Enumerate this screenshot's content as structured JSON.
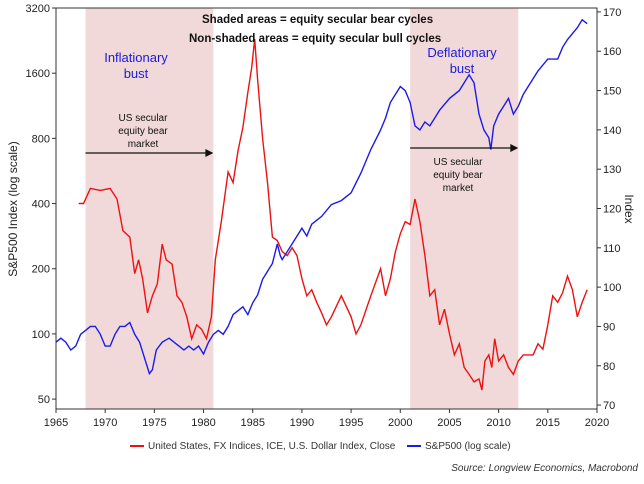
{
  "chart_data": {
    "type": "line",
    "title_lines": [
      "Shaded areas = equity secular bear cycles",
      "Non-shaded areas = equity secular bull cycles"
    ],
    "xlabel": "",
    "ylabel_left": "S&P500 Index (log scale)",
    "ylabel_right": "Index",
    "x_range": [
      1965,
      2020
    ],
    "x_ticks": [
      1965,
      1970,
      1975,
      1980,
      1985,
      1990,
      1995,
      2000,
      2005,
      2010,
      2015,
      2020
    ],
    "left_axis": {
      "scale": "log",
      "range": [
        45,
        3200
      ],
      "ticks": [
        50,
        100,
        200,
        400,
        800,
        1600,
        3200
      ]
    },
    "right_axis": {
      "scale": "linear",
      "range": [
        69,
        171
      ],
      "ticks": [
        70,
        80,
        90,
        100,
        110,
        120,
        130,
        140,
        150,
        160,
        170
      ]
    },
    "shaded_regions": [
      {
        "start": 1968,
        "end": 1981,
        "label_lines": [
          "Inflationary",
          "bust"
        ]
      },
      {
        "start": 2001,
        "end": 2012,
        "label_lines": [
          "Deflationary",
          "bust"
        ]
      }
    ],
    "annotations": [
      {
        "lines": [
          "US secular",
          "equity bear",
          "market"
        ],
        "arrow_from": 1968,
        "arrow_to": 1981
      },
      {
        "lines": [
          "US secular",
          "equity bear",
          "market"
        ],
        "arrow_from": 2001,
        "arrow_to": 2012
      }
    ],
    "series": [
      {
        "name": "United States, FX Indices, ICE, U.S. Dollar Index, Close",
        "color": "#ee1111",
        "axis": "left",
        "x": [
          1967.3,
          1967.8,
          1968.5,
          1969.5,
          1970.5,
          1971.2,
          1971.8,
          1972.5,
          1973.0,
          1973.4,
          1973.8,
          1974.3,
          1974.8,
          1975.3,
          1975.8,
          1976.2,
          1976.8,
          1977.3,
          1977.8,
          1978.3,
          1978.8,
          1979.3,
          1979.8,
          1980.3,
          1980.8,
          1981.2,
          1981.8,
          1982.5,
          1983.0,
          1983.5,
          1984.0,
          1984.5,
          1984.9,
          1985.2,
          1985.5,
          1986.0,
          1986.5,
          1987.0,
          1987.5,
          1988.0,
          1988.5,
          1989.0,
          1989.5,
          1990.0,
          1990.5,
          1991.0,
          1991.5,
          1992.0,
          1992.5,
          1993.0,
          1994.0,
          1995.0,
          1995.5,
          1996.0,
          1997.0,
          1998.0,
          1998.5,
          1999.0,
          1999.5,
          2000.0,
          2000.5,
          2001.0,
          2001.5,
          2002.0,
          2002.5,
          2003.0,
          2003.5,
          2004.0,
          2004.5,
          2005.0,
          2005.5,
          2006.0,
          2006.5,
          2007.0,
          2007.5,
          2008.0,
          2008.3,
          2008.6,
          2009.0,
          2009.3,
          2009.6,
          2010.0,
          2010.5,
          2011.0,
          2011.5,
          2012.0,
          2012.5,
          2013.0,
          2013.5,
          2014.0,
          2014.5,
          2015.0,
          2015.5,
          2016.0,
          2016.5,
          2017.0,
          2017.5,
          2018.0,
          2018.5,
          2019.0
        ],
        "values": [
          400,
          400,
          470,
          460,
          470,
          420,
          300,
          280,
          190,
          220,
          180,
          125,
          150,
          170,
          260,
          220,
          210,
          150,
          140,
          120,
          95,
          110,
          105,
          95,
          120,
          220,
          330,
          560,
          500,
          700,
          900,
          1300,
          1700,
          2300,
          1500,
          800,
          500,
          280,
          270,
          240,
          230,
          250,
          230,
          180,
          150,
          160,
          140,
          125,
          110,
          120,
          150,
          120,
          100,
          110,
          150,
          200,
          150,
          180,
          240,
          290,
          330,
          320,
          420,
          330,
          230,
          150,
          160,
          110,
          130,
          100,
          80,
          90,
          70,
          65,
          60,
          62,
          55,
          75,
          80,
          70,
          95,
          75,
          80,
          70,
          65,
          75,
          80,
          80,
          80,
          90,
          85,
          110,
          150,
          140,
          155,
          185,
          160,
          120,
          140,
          160
        ]
      },
      {
        "name": "S&P500 (log scale)",
        "color": "#1a1aee",
        "axis": "right",
        "x": [
          1965.0,
          1965.5,
          1966.0,
          1966.5,
          1967.0,
          1967.5,
          1968.0,
          1968.5,
          1969.0,
          1969.5,
          1970.0,
          1970.5,
          1971.0,
          1971.5,
          1972.0,
          1972.5,
          1973.0,
          1973.5,
          1974.0,
          1974.5,
          1974.8,
          1975.2,
          1975.8,
          1976.5,
          1977.0,
          1977.5,
          1978.0,
          1978.5,
          1979.0,
          1979.5,
          1980.0,
          1980.5,
          1981.0,
          1981.5,
          1982.0,
          1982.5,
          1983.0,
          1983.5,
          1984.0,
          1984.5,
          1985.0,
          1985.5,
          1986.0,
          1986.5,
          1987.0,
          1987.5,
          1987.8,
          1988.0,
          1989.0,
          1990.0,
          1990.5,
          1991.0,
          1992.0,
          1993.0,
          1994.0,
          1995.0,
          1996.0,
          1997.0,
          1998.0,
          1998.5,
          1999.0,
          2000.0,
          2000.5,
          2001.0,
          2001.5,
          2002.0,
          2002.5,
          2003.0,
          2003.5,
          2004.0,
          2005.0,
          2006.0,
          2007.0,
          2007.5,
          2008.0,
          2008.5,
          2009.0,
          2009.2,
          2009.5,
          2010.0,
          2010.5,
          2011.0,
          2011.5,
          2012.0,
          2012.5,
          2013.0,
          2014.0,
          2015.0,
          2016.0,
          2016.5,
          2017.0,
          2018.0,
          2018.5,
          2019.0
        ],
        "values": [
          86,
          87,
          86,
          84,
          85,
          88,
          89,
          90,
          90,
          88,
          85,
          85,
          88,
          90,
          90,
          91,
          88,
          86,
          82,
          78,
          79,
          84,
          86,
          87,
          86,
          85,
          84,
          85,
          84,
          85,
          83,
          86,
          88,
          89,
          88,
          90,
          93,
          94,
          95,
          93,
          96,
          98,
          102,
          104,
          106,
          111,
          108,
          107,
          111,
          115,
          113,
          116,
          118,
          121,
          122,
          124,
          129,
          135,
          140,
          143,
          147,
          151,
          150,
          147,
          141,
          140,
          142,
          141,
          143,
          145,
          148,
          150,
          154,
          152,
          144,
          140,
          138,
          135,
          141,
          144,
          146,
          148,
          144,
          146,
          149,
          151,
          155,
          158,
          158,
          161,
          163,
          166,
          168,
          167
        ]
      }
    ]
  },
  "legend": {
    "usd_label": "United States, FX Indices, ICE, U.S. Dollar Index, Close",
    "spx_label": "S&P500 (log scale)"
  },
  "source": "Source: Longview Economics, Macrobond"
}
